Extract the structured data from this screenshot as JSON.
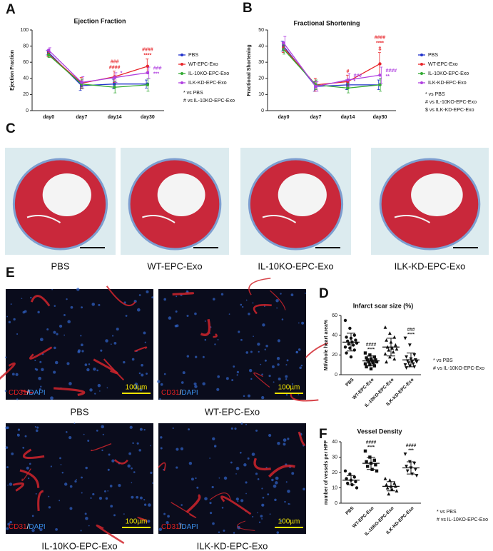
{
  "figure": {
    "panel_labels": [
      "A",
      "B",
      "C",
      "D",
      "E",
      "F"
    ],
    "heart_sections": [
      "PBS",
      "WT-EPC-Exo",
      "IL-10KO-EPC-Exo",
      "ILK-KD-EPC-Exo"
    ],
    "micrographs": {
      "captions": [
        "PBS",
        "WT-EPC-Exo",
        "IL-10KO-EPC-Exo",
        "ILK-KD-EPC-Exo"
      ],
      "stain_red": "CD31",
      "separator": "/",
      "stain_blue": "DAPI",
      "scale_bar": "100µm"
    }
  },
  "chart_data": [
    {
      "type": "line",
      "title": "Ejection Fraction",
      "ylabel": "Ejection Fraction",
      "categories": [
        "day0",
        "day7",
        "day14",
        "day30"
      ],
      "ylim": [
        0,
        100
      ],
      "yticks": [
        0,
        20,
        40,
        60,
        80,
        100
      ],
      "series": [
        {
          "name": "PBS",
          "color": "#2233cc",
          "values": [
            72,
            31,
            33,
            33
          ],
          "errors": [
            3,
            6,
            6,
            5
          ],
          "significance": [
            null,
            null,
            null,
            null
          ]
        },
        {
          "name": "WT-EPC-Exo",
          "color": "#e8252a",
          "values": [
            70,
            34,
            42,
            55
          ],
          "errors": [
            3,
            7,
            7,
            9
          ],
          "significance": [
            null,
            null,
            [
              "###",
              "####"
            ],
            [
              "####",
              "****"
            ]
          ]
        },
        {
          "name": "IL-10KO-EPC-Exo",
          "color": "#33aa33",
          "values": [
            69,
            33,
            29,
            32
          ],
          "errors": [
            3,
            6,
            7,
            8
          ],
          "significance": [
            null,
            null,
            null,
            null
          ]
        },
        {
          "name": "ILK-KD-EPC-Exo",
          "color": "#b040e0",
          "values": [
            75,
            35,
            41,
            47
          ],
          "errors": [
            3,
            7,
            6,
            7
          ],
          "significance": [
            null,
            null,
            [
              "*"
            ],
            [
              "###",
              "***"
            ]
          ]
        }
      ],
      "notes": [
        "* vs PBS",
        "# vs IL-10KO-EPC-Exo"
      ]
    },
    {
      "type": "line",
      "title": "Fractional Shortening",
      "ylabel": "Fractional Shortening",
      "categories": [
        "day0",
        "day7",
        "day14",
        "day30"
      ],
      "ylim": [
        0,
        50
      ],
      "yticks": [
        0,
        10,
        20,
        30,
        40,
        50
      ],
      "series": [
        {
          "name": "PBS",
          "color": "#2233cc",
          "values": [
            40,
            15,
            16,
            16
          ],
          "errors": [
            3,
            3,
            3,
            3
          ],
          "significance": [
            null,
            null,
            null,
            null
          ]
        },
        {
          "name": "WT-EPC-Exo",
          "color": "#e8252a",
          "values": [
            39,
            16,
            18,
            29
          ],
          "errors": [
            3,
            4,
            4,
            7
          ],
          "significance": [
            null,
            null,
            [
              "#"
            ],
            [
              "####",
              "****",
              "$"
            ]
          ]
        },
        {
          "name": "IL-10KO-EPC-Exo",
          "color": "#33aa33",
          "values": [
            38,
            16,
            14,
            16
          ],
          "errors": [
            3,
            3,
            3,
            4
          ],
          "significance": [
            null,
            null,
            null,
            null
          ]
        },
        {
          "name": "ILK-KD-EPC-Exo",
          "color": "#b040e0",
          "values": [
            42,
            15,
            19,
            22
          ],
          "errors": [
            4,
            3,
            4,
            5
          ],
          "significance": [
            null,
            null,
            [
              "###",
              "*"
            ],
            [
              "####",
              "**"
            ]
          ]
        }
      ],
      "notes": [
        "* vs PBS",
        "# vs IL-10KO-EPC-Exo",
        "$ vs ILK-KD-EPC-Exo"
      ]
    },
    {
      "type": "dot",
      "title": "Infarct scar size (%)",
      "ylabel": "MI/whole heart area%",
      "ylim": [
        0,
        60
      ],
      "yticks": [
        0,
        20,
        40,
        60
      ],
      "color": "#111111",
      "series": [
        {
          "name": "PBS",
          "marker": "circle",
          "points": [
            55,
            47,
            40,
            38,
            37,
            35,
            34,
            33,
            32,
            31,
            30,
            28,
            27,
            25,
            22,
            18
          ],
          "mean": 33,
          "sd": 9,
          "significance": null
        },
        {
          "name": "WT-EPC-Exo",
          "marker": "square",
          "points": [
            22,
            20,
            18,
            17,
            16,
            15,
            15,
            14,
            13,
            13,
            12,
            11,
            10,
            9,
            8,
            6
          ],
          "mean": 14,
          "sd": 5,
          "significance": [
            "####",
            "****"
          ]
        },
        {
          "name": "IL-10KO-EPC-Exo",
          "marker": "triangle",
          "points": [
            48,
            42,
            38,
            35,
            33,
            30,
            28,
            27,
            26,
            25,
            23,
            21,
            18,
            16,
            13
          ],
          "mean": 28,
          "sd": 9,
          "significance": null
        },
        {
          "name": "ILK-KD-EPC-Exo",
          "marker": "triangle-down",
          "points": [
            37,
            30,
            20,
            18,
            16,
            15,
            14,
            13,
            13,
            12,
            11,
            10,
            9,
            8,
            7
          ],
          "mean": 15,
          "sd": 7,
          "significance": [
            "###",
            "****"
          ]
        }
      ],
      "notes": [
        "* vs PBS",
        "# vs IL-10KO-EPC-Exo"
      ]
    },
    {
      "type": "dot",
      "title": "Vessel Density",
      "ylabel": "number of vessels per HPF",
      "ylim": [
        0,
        40
      ],
      "yticks": [
        0,
        10,
        20,
        30,
        40
      ],
      "color": "#111111",
      "series": [
        {
          "name": "PBS",
          "marker": "circle",
          "points": [
            21,
            19,
            17,
            16,
            15,
            14,
            13,
            12,
            10
          ],
          "mean": 15,
          "sd": 3,
          "significance": null
        },
        {
          "name": "WT-EPC-Exo",
          "marker": "square",
          "points": [
            34,
            30,
            28,
            27,
            26,
            25,
            24,
            22,
            21
          ],
          "mean": 26,
          "sd": 4,
          "significance": [
            "####",
            "****"
          ]
        },
        {
          "name": "IL-10KO-EPC-Exo",
          "marker": "triangle",
          "points": [
            16,
            15,
            13,
            12,
            11,
            11,
            10,
            9,
            8,
            6
          ],
          "mean": 11,
          "sd": 3,
          "significance": null
        },
        {
          "name": "ILK-KD-EPC-Exo",
          "marker": "triangle-down",
          "points": [
            32,
            27,
            26,
            24,
            23,
            22,
            21,
            19,
            18
          ],
          "mean": 23,
          "sd": 4,
          "significance": [
            "####",
            "***"
          ]
        }
      ],
      "notes": [
        "* vs PBS",
        "# vs IL-10KO-EPC-Exo"
      ]
    }
  ]
}
